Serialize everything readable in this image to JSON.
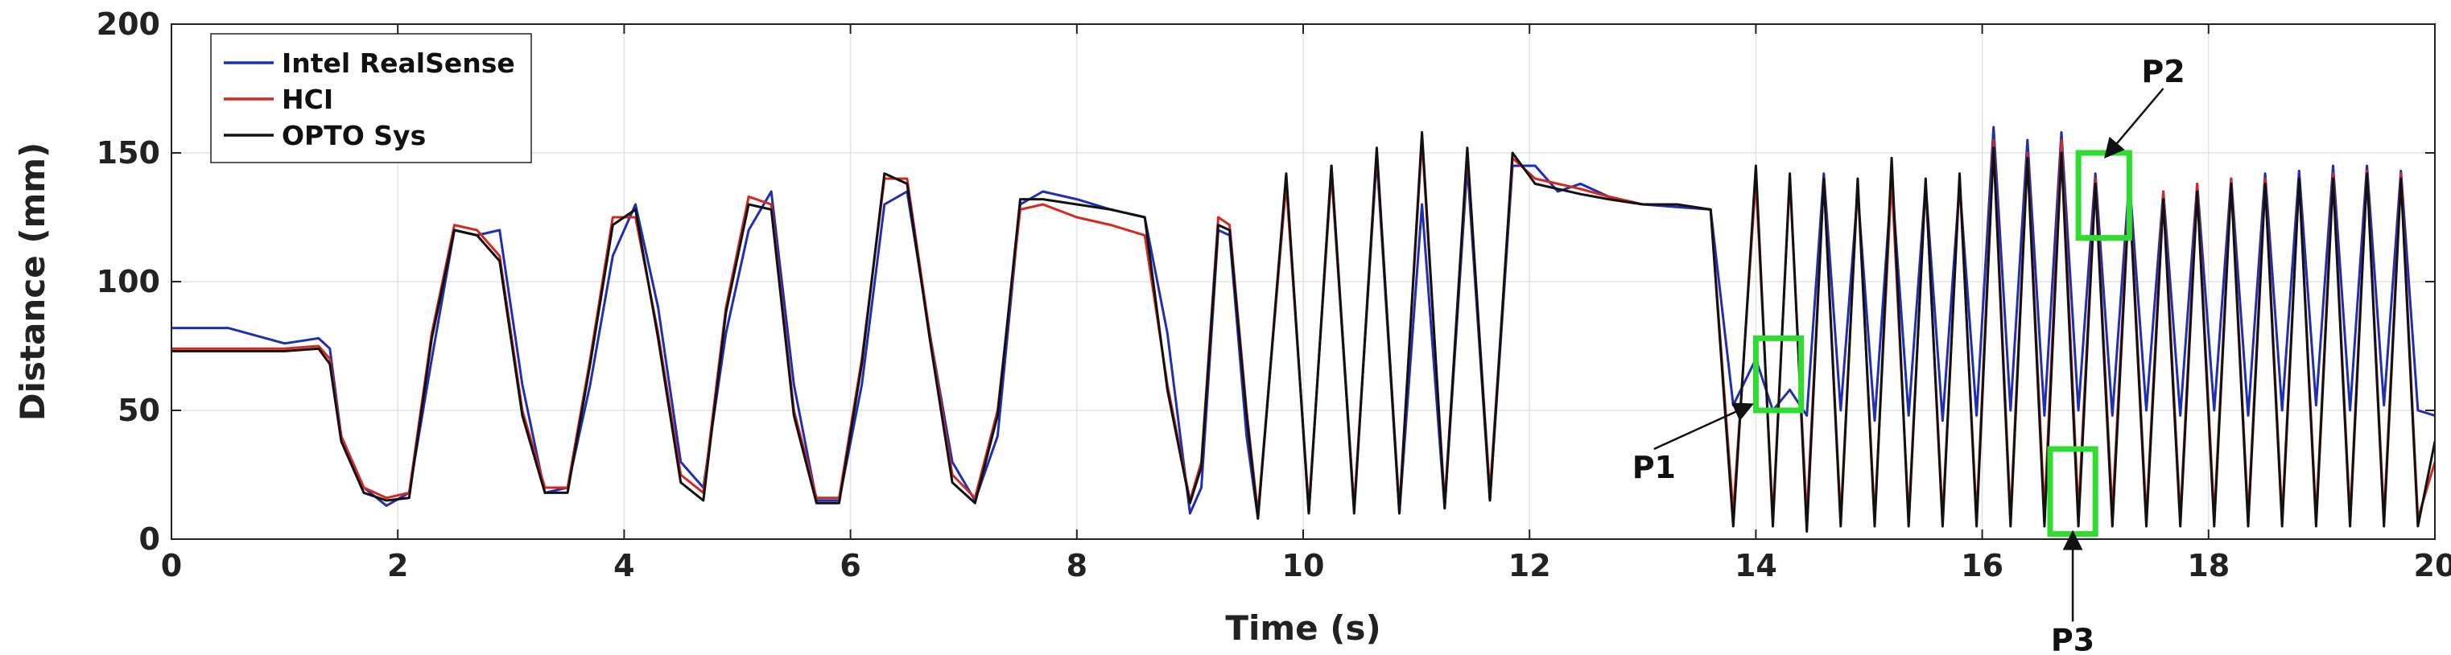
{
  "chart_data": {
    "type": "line",
    "title": "",
    "xlabel": "Time (s)",
    "ylabel": "Distance (mm)",
    "xlim": [
      0,
      20
    ],
    "ylim": [
      0,
      200
    ],
    "xticks": [
      0,
      2,
      4,
      6,
      8,
      10,
      12,
      14,
      16,
      18,
      20
    ],
    "yticks": [
      0,
      50,
      100,
      150,
      200
    ],
    "grid": true,
    "legend_position": "top-left",
    "series": [
      {
        "name": "Intel RealSense",
        "color": "#1f2fb4",
        "x": [
          0,
          0.5,
          1.0,
          1.3,
          1.4,
          1.5,
          1.7,
          1.9,
          2.1,
          2.3,
          2.5,
          2.7,
          2.9,
          3.1,
          3.3,
          3.5,
          3.7,
          3.9,
          4.1,
          4.3,
          4.5,
          4.7,
          4.9,
          5.1,
          5.3,
          5.5,
          5.7,
          5.9,
          6.1,
          6.3,
          6.5,
          6.7,
          6.9,
          7.1,
          7.3,
          7.5,
          7.7,
          8.0,
          8.3,
          8.6,
          8.8,
          9.0,
          9.1,
          9.25,
          9.35,
          9.5,
          9.6,
          9.85,
          10.05,
          10.25,
          10.45,
          10.65,
          10.85,
          11.05,
          11.25,
          11.45,
          11.65,
          11.85,
          12.05,
          12.25,
          12.45,
          12.7,
          13.0,
          13.3,
          13.6,
          13.8,
          14.0,
          14.15,
          14.3,
          14.45,
          14.6,
          14.75,
          14.9,
          15.05,
          15.2,
          15.35,
          15.5,
          15.65,
          15.8,
          15.95,
          16.1,
          16.25,
          16.4,
          16.55,
          16.7,
          16.85,
          17.0,
          17.15,
          17.3,
          17.45,
          17.6,
          17.75,
          17.9,
          18.05,
          18.2,
          18.35,
          18.5,
          18.65,
          18.8,
          18.95,
          19.1,
          19.25,
          19.4,
          19.55,
          19.7,
          19.85,
          20.0
        ],
        "y": [
          82,
          82,
          76,
          78,
          74,
          40,
          20,
          13,
          18,
          70,
          120,
          118,
          120,
          60,
          18,
          20,
          60,
          110,
          130,
          90,
          30,
          20,
          80,
          120,
          135,
          60,
          15,
          15,
          60,
          130,
          135,
          80,
          30,
          15,
          40,
          130,
          135,
          132,
          128,
          125,
          80,
          10,
          20,
          120,
          118,
          40,
          8,
          140,
          10,
          145,
          12,
          148,
          10,
          130,
          12,
          145,
          15,
          145,
          145,
          135,
          138,
          133,
          130,
          129,
          128,
          52,
          70,
          50,
          58,
          48,
          142,
          50,
          135,
          46,
          140,
          48,
          138,
          46,
          138,
          48,
          160,
          50,
          155,
          48,
          158,
          50,
          142,
          48,
          140,
          50,
          135,
          48,
          138,
          50,
          140,
          48,
          142,
          50,
          143,
          52,
          145,
          50,
          145,
          52,
          143,
          50,
          48
        ]
      },
      {
        "name": "HCI",
        "color": "#d42a1e",
        "x": [
          0,
          0.5,
          1.0,
          1.3,
          1.4,
          1.5,
          1.7,
          1.9,
          2.1,
          2.3,
          2.5,
          2.7,
          2.9,
          3.1,
          3.3,
          3.5,
          3.7,
          3.9,
          4.1,
          4.3,
          4.5,
          4.7,
          4.9,
          5.1,
          5.3,
          5.5,
          5.7,
          5.9,
          6.1,
          6.3,
          6.5,
          6.7,
          6.9,
          7.1,
          7.3,
          7.5,
          7.7,
          8.0,
          8.3,
          8.6,
          8.8,
          9.0,
          9.1,
          9.25,
          9.35,
          9.5,
          9.6,
          9.85,
          10.05,
          10.25,
          10.45,
          10.65,
          10.85,
          11.05,
          11.25,
          11.45,
          11.65,
          11.85,
          12.05,
          12.25,
          12.45,
          12.7,
          13.0,
          13.3,
          13.6,
          13.8,
          14.0,
          14.15,
          14.3,
          14.45,
          14.6,
          14.75,
          14.9,
          15.05,
          15.2,
          15.35,
          15.5,
          15.65,
          15.8,
          15.95,
          16.1,
          16.25,
          16.4,
          16.55,
          16.7,
          16.85,
          17.0,
          17.15,
          17.3,
          17.45,
          17.6,
          17.75,
          17.9,
          18.05,
          18.2,
          18.35,
          18.5,
          18.65,
          18.8,
          18.95,
          19.1,
          19.25,
          19.4,
          19.55,
          19.7,
          19.85,
          20.0
        ],
        "y": [
          74,
          74,
          74,
          75,
          70,
          40,
          20,
          16,
          18,
          80,
          122,
          120,
          110,
          50,
          20,
          20,
          70,
          125,
          125,
          80,
          25,
          18,
          90,
          133,
          130,
          50,
          16,
          16,
          70,
          140,
          140,
          80,
          25,
          16,
          50,
          128,
          130,
          125,
          122,
          118,
          60,
          15,
          30,
          125,
          122,
          50,
          10,
          138,
          12,
          142,
          12,
          150,
          12,
          155,
          14,
          150,
          18,
          148,
          140,
          138,
          136,
          133,
          130,
          130,
          128,
          10,
          140,
          8,
          140,
          8,
          140,
          8,
          138,
          8,
          140,
          8,
          138,
          8,
          140,
          8,
          155,
          8,
          150,
          10,
          155,
          10,
          140,
          10,
          138,
          8,
          135,
          8,
          138,
          8,
          140,
          8,
          140,
          8,
          140,
          8,
          142,
          8,
          143,
          8,
          142,
          8,
          30
        ]
      },
      {
        "name": "OPTO Sys",
        "color": "#111111",
        "x": [
          0,
          0.5,
          1.0,
          1.3,
          1.4,
          1.5,
          1.7,
          1.9,
          2.1,
          2.3,
          2.5,
          2.7,
          2.9,
          3.1,
          3.3,
          3.5,
          3.7,
          3.9,
          4.1,
          4.3,
          4.5,
          4.7,
          4.9,
          5.1,
          5.3,
          5.5,
          5.7,
          5.9,
          6.1,
          6.3,
          6.5,
          6.7,
          6.9,
          7.1,
          7.3,
          7.5,
          7.7,
          8.0,
          8.3,
          8.6,
          8.8,
          9.0,
          9.1,
          9.25,
          9.35,
          9.5,
          9.6,
          9.85,
          10.05,
          10.25,
          10.45,
          10.65,
          10.85,
          11.05,
          11.25,
          11.45,
          11.65,
          11.85,
          12.05,
          12.25,
          12.45,
          12.7,
          13.0,
          13.3,
          13.6,
          13.8,
          14.0,
          14.15,
          14.3,
          14.45,
          14.6,
          14.75,
          14.9,
          15.05,
          15.2,
          15.35,
          15.5,
          15.65,
          15.8,
          15.95,
          16.1,
          16.25,
          16.4,
          16.55,
          16.7,
          16.85,
          17.0,
          17.15,
          17.3,
          17.45,
          17.6,
          17.75,
          17.9,
          18.05,
          18.2,
          18.35,
          18.5,
          18.65,
          18.8,
          18.95,
          19.1,
          19.25,
          19.4,
          19.55,
          19.7,
          19.85,
          20.0
        ],
        "y": [
          73,
          73,
          73,
          74,
          68,
          38,
          18,
          15,
          16,
          78,
          120,
          118,
          108,
          48,
          18,
          18,
          68,
          122,
          128,
          78,
          22,
          15,
          88,
          130,
          128,
          48,
          14,
          14,
          68,
          142,
          138,
          78,
          22,
          14,
          48,
          132,
          132,
          130,
          128,
          125,
          58,
          14,
          28,
          122,
          120,
          48,
          8,
          142,
          10,
          145,
          10,
          152,
          10,
          158,
          12,
          152,
          15,
          150,
          138,
          136,
          134,
          132,
          130,
          130,
          128,
          5,
          145,
          5,
          142,
          3,
          140,
          5,
          140,
          5,
          148,
          5,
          140,
          5,
          142,
          5,
          152,
          5,
          148,
          5,
          150,
          5,
          138,
          5,
          135,
          5,
          132,
          5,
          135,
          5,
          138,
          5,
          138,
          5,
          140,
          5,
          140,
          5,
          142,
          5,
          140,
          5,
          38
        ]
      }
    ],
    "annotations": [
      {
        "label": "P1",
        "box": {
          "x": [
            14.0,
            14.4
          ],
          "y": [
            50,
            78
          ]
        },
        "arrow_to": {
          "x": 13.95,
          "y": 52
        },
        "label_at": {
          "x": 13.1,
          "y": 35
        }
      },
      {
        "label": "P2",
        "box": {
          "x": [
            16.85,
            17.3
          ],
          "y": [
            117,
            150
          ]
        },
        "arrow_to": {
          "x": 17.1,
          "y": 149
        },
        "label_at": {
          "x": 17.6,
          "y": 175
        }
      },
      {
        "label": "P3",
        "box": {
          "x": [
            16.6,
            17.0
          ],
          "y": [
            2,
            35
          ]
        },
        "arrow_to": {
          "x": 16.8,
          "y": 2
        },
        "label_at": {
          "x": 16.8,
          "y": -32
        }
      }
    ],
    "annotation_color": "#2fdc2f"
  }
}
